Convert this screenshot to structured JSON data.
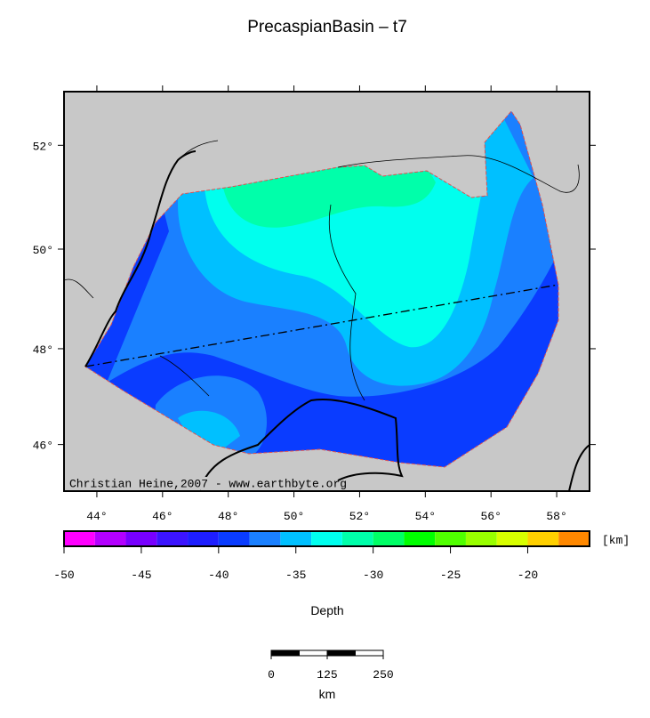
{
  "title": "PrecaspianBasin – t7",
  "credit": "Christian Heine,2007 - www.earthbyte.org",
  "map": {
    "xlim": [
      43,
      59
    ],
    "ylim": [
      45,
      53
    ],
    "xticks": [
      {
        "value": 44,
        "label": "44°"
      },
      {
        "value": 46,
        "label": "46°"
      },
      {
        "value": 48,
        "label": "48°"
      },
      {
        "value": 50,
        "label": "50°"
      },
      {
        "value": 52,
        "label": "52°"
      },
      {
        "value": 54,
        "label": "54°"
      },
      {
        "value": 56,
        "label": "56°"
      },
      {
        "value": 58,
        "label": "58°"
      }
    ],
    "yticks": [
      {
        "value": 46,
        "label": "46°"
      },
      {
        "value": 48,
        "label": "48°"
      },
      {
        "value": 50,
        "label": "50°"
      },
      {
        "value": 52,
        "label": "52°"
      }
    ]
  },
  "colorbar": {
    "label": "Depth",
    "unit": "[km]",
    "lim": [
      -50,
      -16
    ],
    "ticks": [
      -50,
      -45,
      -40,
      -35,
      -30,
      -25,
      -20
    ],
    "colors": [
      "#ff00ff",
      "#b400ff",
      "#7800ff",
      "#3c14ff",
      "#1e1eff",
      "#0a3cff",
      "#1a80ff",
      "#00c0ff",
      "#00ffee",
      "#00ffaa",
      "#00ff66",
      "#00ff00",
      "#50ff00",
      "#99ff00",
      "#d8ff00",
      "#ffd000",
      "#ff8800"
    ]
  },
  "scalebar": {
    "label": "km",
    "lim": [
      0,
      250
    ],
    "ticks": [
      0,
      125,
      250
    ]
  }
}
